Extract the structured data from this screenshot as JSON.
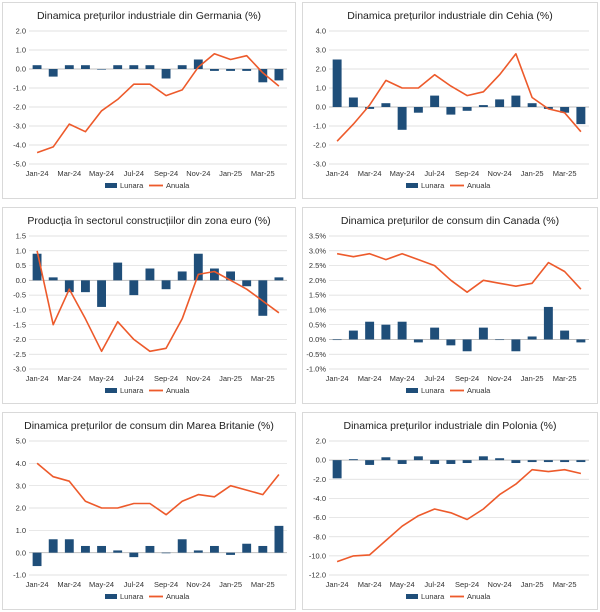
{
  "colors": {
    "monthly": "#1f4e79",
    "annual": "#ed5a2b",
    "grid": "#d9d9d9",
    "zero": "#bfbfbf"
  },
  "chart_data": [
    {
      "type": "bar",
      "title": "Dinamica prețurilor industriale din Germania (%)",
      "categories": [
        "Jan-24",
        "Feb-24",
        "Mar-24",
        "Apr-24",
        "May-24",
        "Jun-24",
        "Jul-24",
        "Aug-24",
        "Sep-24",
        "Oct-24",
        "Nov-24",
        "Dec-24",
        "Jan-25",
        "Feb-25",
        "Mar-25",
        "Apr-25"
      ],
      "x_tick_labels": [
        "Jan-24",
        "Mar-24",
        "May-24",
        "Jul-24",
        "Sep-24",
        "Nov-24",
        "Jan-25",
        "Mar-25"
      ],
      "ylim": [
        -5,
        2
      ],
      "yticks": [
        -5,
        -4,
        -3,
        -2,
        -1,
        0,
        1,
        2
      ],
      "ytick_labels": [
        "-5.0",
        "-4.0",
        "-3.0",
        "-2.0",
        "-1.0",
        "0.0",
        "1.0",
        "2.0"
      ],
      "series": [
        {
          "name": "Lunara",
          "type": "bar",
          "values": [
            0.2,
            -0.4,
            0.2,
            0.2,
            0.0,
            0.2,
            0.2,
            0.2,
            -0.5,
            0.2,
            0.5,
            -0.1,
            -0.1,
            -0.1,
            -0.7,
            -0.6
          ]
        },
        {
          "name": "Anuala",
          "type": "line",
          "values": [
            -4.4,
            -4.1,
            -2.9,
            -3.3,
            -2.2,
            -1.6,
            -0.8,
            -0.8,
            -1.4,
            -1.1,
            0.1,
            0.8,
            0.5,
            0.7,
            -0.2,
            -0.9
          ]
        }
      ]
    },
    {
      "type": "bar",
      "title": "Dinamica prețurilor industriale din Cehia (%)",
      "categories": [
        "Jan-24",
        "Feb-24",
        "Mar-24",
        "Apr-24",
        "May-24",
        "Jun-24",
        "Jul-24",
        "Aug-24",
        "Sep-24",
        "Oct-24",
        "Nov-24",
        "Dec-24",
        "Jan-25",
        "Feb-25",
        "Mar-25",
        "Apr-25"
      ],
      "x_tick_labels": [
        "Jan-24",
        "Mar-24",
        "May-24",
        "Jul-24",
        "Sep-24",
        "Nov-24",
        "Jan-25",
        "Mar-25"
      ],
      "ylim": [
        -3,
        4
      ],
      "yticks": [
        -3,
        -2,
        -1,
        0,
        1,
        2,
        3,
        4
      ],
      "ytick_labels": [
        "-3.0",
        "-2.0",
        "-1.0",
        "0.0",
        "1.0",
        "2.0",
        "3.0",
        "4.0"
      ],
      "series": [
        {
          "name": "Lunara",
          "type": "bar",
          "values": [
            2.5,
            0.5,
            -0.1,
            0.2,
            -1.2,
            -0.3,
            0.6,
            -0.4,
            -0.2,
            0.1,
            0.4,
            0.6,
            0.2,
            -0.1,
            -0.3,
            -0.9
          ]
        },
        {
          "name": "Anuala",
          "type": "line",
          "values": [
            -1.8,
            -0.9,
            0.1,
            1.4,
            1.0,
            1.0,
            1.7,
            1.1,
            0.6,
            0.8,
            1.7,
            2.8,
            0.5,
            -0.1,
            -0.3,
            -1.3
          ]
        }
      ]
    },
    {
      "type": "bar",
      "title": "Producția în sectorul construcțiilor din zona euro (%)",
      "categories": [
        "Jan-24",
        "Feb-24",
        "Mar-24",
        "Apr-24",
        "May-24",
        "Jun-24",
        "Jul-24",
        "Aug-24",
        "Sep-24",
        "Oct-24",
        "Nov-24",
        "Dec-24",
        "Jan-25",
        "Feb-25",
        "Mar-25",
        "Apr-25"
      ],
      "x_tick_labels": [
        "Jan-24",
        "Mar-24",
        "May-24",
        "Jul-24",
        "Sep-24",
        "Nov-24",
        "Jan-25",
        "Mar-25"
      ],
      "ylim": [
        -3,
        1.5
      ],
      "yticks": [
        -3,
        -2.5,
        -2,
        -1.5,
        -1,
        -0.5,
        0,
        0.5,
        1,
        1.5
      ],
      "ytick_labels": [
        "-3.0",
        "-2.5",
        "-2.0",
        "-1.5",
        "-1.0",
        "-0.5",
        "0.0",
        "0.5",
        "1.0",
        "1.5"
      ],
      "series": [
        {
          "name": "Lunara",
          "type": "bar",
          "values": [
            0.9,
            0.1,
            -0.4,
            -0.4,
            -0.9,
            0.6,
            -0.5,
            0.4,
            -0.3,
            0.3,
            0.9,
            0.4,
            0.3,
            -0.2,
            -1.2,
            0.1
          ]
        },
        {
          "name": "Anuala",
          "type": "line",
          "values": [
            1.0,
            -1.5,
            -0.3,
            -1.3,
            -2.4,
            -1.4,
            -2.0,
            -2.4,
            -2.3,
            -1.3,
            0.2,
            0.3,
            0.0,
            -0.3,
            -0.7,
            -1.1
          ]
        }
      ]
    },
    {
      "type": "bar",
      "title": "Dinamica prețurilor de consum din Canada (%)",
      "categories": [
        "Jan-24",
        "Feb-24",
        "Mar-24",
        "Apr-24",
        "May-24",
        "Jun-24",
        "Jul-24",
        "Aug-24",
        "Sep-24",
        "Oct-24",
        "Nov-24",
        "Dec-24",
        "Jan-25",
        "Feb-25",
        "Mar-25",
        "Apr-25"
      ],
      "x_tick_labels": [
        "Jan-24",
        "Mar-24",
        "May-24",
        "Jul-24",
        "Sep-24",
        "Nov-24",
        "Jan-25",
        "Mar-25"
      ],
      "ylim": [
        -1,
        3.5
      ],
      "yticks": [
        -1,
        -0.5,
        0,
        0.5,
        1,
        1.5,
        2,
        2.5,
        3,
        3.5
      ],
      "ytick_labels": [
        "-1.0%",
        "-0.5%",
        "0.0%",
        "0.5%",
        "1.0%",
        "1.5%",
        "2.0%",
        "2.5%",
        "3.0%",
        "3.5%"
      ],
      "series": [
        {
          "name": "Lunara",
          "type": "bar",
          "values": [
            0.0,
            0.3,
            0.6,
            0.5,
            0.6,
            -0.1,
            0.4,
            -0.2,
            -0.4,
            0.4,
            0.0,
            -0.4,
            0.1,
            1.1,
            0.3,
            -0.1
          ]
        },
        {
          "name": "Anuala",
          "type": "line",
          "values": [
            2.9,
            2.8,
            2.9,
            2.7,
            2.9,
            2.7,
            2.5,
            2.0,
            1.6,
            2.0,
            1.9,
            1.8,
            1.9,
            2.6,
            2.3,
            1.7
          ]
        }
      ]
    },
    {
      "type": "bar",
      "title": "Dinamica prețurilor de consum din Marea Britanie (%)",
      "categories": [
        "Jan-24",
        "Feb-24",
        "Mar-24",
        "Apr-24",
        "May-24",
        "Jun-24",
        "Jul-24",
        "Aug-24",
        "Sep-24",
        "Oct-24",
        "Nov-24",
        "Dec-24",
        "Jan-25",
        "Feb-25",
        "Mar-25",
        "Apr-25"
      ],
      "x_tick_labels": [
        "Jan-24",
        "Mar-24",
        "May-24",
        "Jul-24",
        "Sep-24",
        "Nov-24",
        "Jan-25",
        "Mar-25"
      ],
      "ylim": [
        -1,
        5
      ],
      "yticks": [
        -1,
        0,
        1,
        2,
        3,
        4,
        5
      ],
      "ytick_labels": [
        "-1.0",
        "0.0",
        "1.0",
        "2.0",
        "3.0",
        "4.0",
        "5.0"
      ],
      "series": [
        {
          "name": "Lunara",
          "type": "bar",
          "values": [
            -0.6,
            0.6,
            0.6,
            0.3,
            0.3,
            0.1,
            -0.2,
            0.3,
            0.0,
            0.6,
            0.1,
            0.3,
            -0.1,
            0.4,
            0.3,
            1.2
          ]
        },
        {
          "name": "Anuala",
          "type": "line",
          "values": [
            4.0,
            3.4,
            3.2,
            2.3,
            2.0,
            2.0,
            2.2,
            2.2,
            1.7,
            2.3,
            2.6,
            2.5,
            3.0,
            2.8,
            2.6,
            3.5
          ]
        }
      ]
    },
    {
      "type": "bar",
      "title": "Dinamica prețurilor industriale din Polonia (%)",
      "categories": [
        "Jan-24",
        "Feb-24",
        "Mar-24",
        "Apr-24",
        "May-24",
        "Jun-24",
        "Jul-24",
        "Aug-24",
        "Sep-24",
        "Oct-24",
        "Nov-24",
        "Dec-24",
        "Jan-25",
        "Feb-25",
        "Mar-25",
        "Apr-25"
      ],
      "x_tick_labels": [
        "Jan-24",
        "Mar-24",
        "May-24",
        "Jul-24",
        "Sep-24",
        "Nov-24",
        "Jan-25",
        "Mar-25"
      ],
      "ylim": [
        -12,
        2
      ],
      "yticks": [
        -12,
        -10,
        -8,
        -6,
        -4,
        -2,
        0,
        2
      ],
      "ytick_labels": [
        "-12.0",
        "-10.0",
        "-8.0",
        "-6.0",
        "-4.0",
        "-2.0",
        "0.0",
        "2.0"
      ],
      "series": [
        {
          "name": "Lunara",
          "type": "bar",
          "values": [
            -1.9,
            0.1,
            -0.5,
            0.3,
            -0.4,
            0.4,
            -0.4,
            -0.4,
            -0.3,
            0.4,
            0.2,
            -0.3,
            -0.2,
            -0.2,
            -0.2,
            -0.2
          ]
        },
        {
          "name": "Anuala",
          "type": "line",
          "values": [
            -10.6,
            -10.0,
            -9.9,
            -8.4,
            -6.9,
            -5.8,
            -5.1,
            -5.5,
            -6.2,
            -5.1,
            -3.6,
            -2.5,
            -1.0,
            -1.2,
            -1.0,
            -1.4
          ]
        }
      ]
    }
  ]
}
